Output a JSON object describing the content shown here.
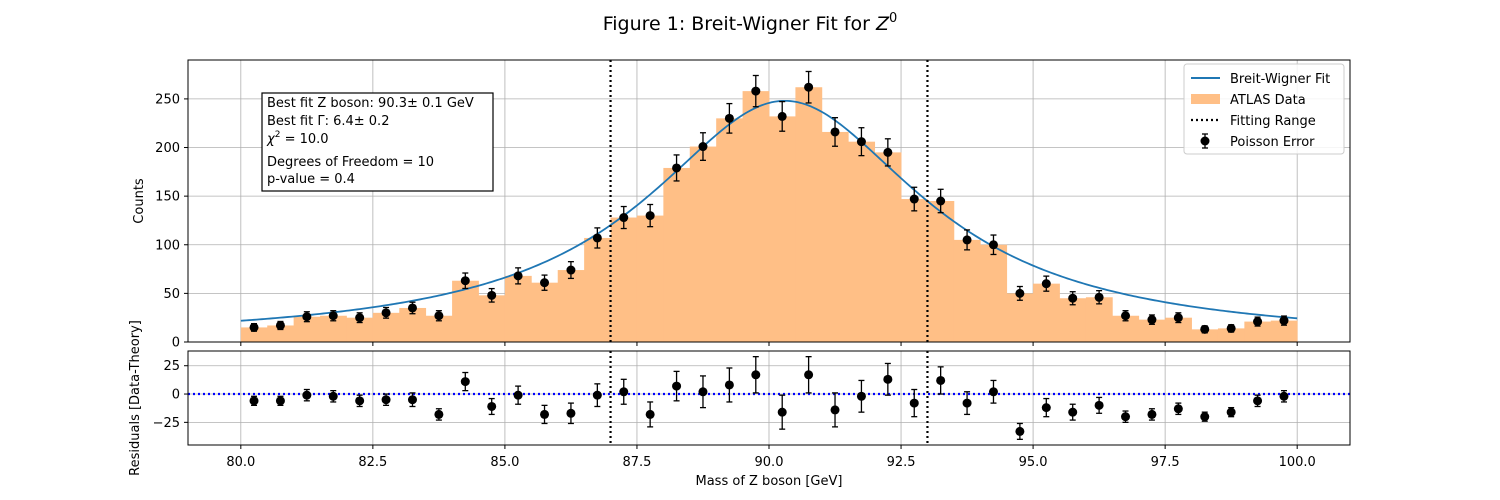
{
  "figure": {
    "title_prefix": "Figure 1: Breit-Wigner Fit for ",
    "title_math_base": "Z",
    "title_math_sup": "0"
  },
  "chart_data": [
    {
      "type": "bar",
      "panel": "main",
      "ylabel": "Counts",
      "xlim": [
        79.0,
        101.0
      ],
      "ylim": [
        0,
        290
      ],
      "yticks": [
        0,
        50,
        100,
        150,
        200,
        250
      ],
      "xticks": [
        80.0,
        82.5,
        85.0,
        87.5,
        90.0,
        92.5,
        95.0,
        97.5,
        100.0
      ],
      "xtick_labels": [
        "80.0",
        "82.5",
        "85.0",
        "87.5",
        "90.0",
        "92.5",
        "95.0",
        "97.5",
        "100.0"
      ],
      "grid": true,
      "legend_position": "top-right",
      "bin_edges_start": 80.0,
      "bin_width": 0.5,
      "x": [
        80.25,
        80.75,
        81.25,
        81.75,
        82.25,
        82.75,
        83.25,
        83.75,
        84.25,
        84.75,
        85.25,
        85.75,
        86.25,
        86.75,
        87.25,
        87.75,
        88.25,
        88.75,
        89.25,
        89.75,
        90.25,
        90.75,
        91.25,
        91.75,
        92.25,
        92.75,
        93.25,
        93.75,
        94.25,
        94.75,
        95.25,
        95.75,
        96.25,
        96.75,
        97.25,
        97.75,
        98.25,
        98.75,
        99.25,
        99.75
      ],
      "series": [
        {
          "name": "ATLAS Data",
          "kind": "histogram",
          "color": "#ffbf86",
          "values": [
            15,
            17,
            26,
            27,
            25,
            30,
            35,
            27,
            63,
            48,
            68,
            61,
            74,
            107,
            128,
            130,
            179,
            201,
            230,
            258,
            232,
            262,
            216,
            206,
            195,
            147,
            145,
            105,
            100,
            50,
            60,
            45,
            46,
            27,
            23,
            25,
            13,
            14,
            21,
            22
          ]
        },
        {
          "name": "Poisson Error",
          "kind": "errorbar",
          "color": "#000000",
          "values": [
            15,
            17,
            26,
            27,
            25,
            30,
            35,
            27,
            63,
            48,
            68,
            61,
            74,
            107,
            128,
            130,
            179,
            201,
            230,
            258,
            232,
            262,
            216,
            206,
            195,
            147,
            145,
            105,
            100,
            50,
            60,
            45,
            46,
            27,
            23,
            25,
            13,
            14,
            21,
            22
          ]
        },
        {
          "name": "Breit-Wigner Fit",
          "kind": "line",
          "color": "#1f77b4",
          "mass": 90.3,
          "width": 6.4,
          "peak": 248,
          "x_range": [
            80.0,
            100.0
          ]
        },
        {
          "name": "Fitting Range",
          "kind": "vlines",
          "color": "#000000",
          "style": "dotted",
          "x": [
            87.0,
            93.0
          ]
        }
      ],
      "annotation": [
        "Best fit Z boson: 90.3± 0.1 GeV",
        "Best fit Γ: 6.4± 0.2",
        " = 10.0",
        "Degrees of Freedom = 10",
        "p-value = 0.4"
      ],
      "annotation_chi_symbol": "χ",
      "annotation_chi_sup": "2"
    },
    {
      "type": "scatter",
      "panel": "residuals",
      "xlabel": "Mass of Z boson [GeV]",
      "ylabel": "Residuals [Data-Theory]",
      "xlim": [
        79.0,
        101.0
      ],
      "ylim": [
        -45,
        38
      ],
      "yticks": [
        -25,
        0,
        25
      ],
      "xticks": [
        80.0,
        82.5,
        85.0,
        87.5,
        90.0,
        92.5,
        95.0,
        97.5,
        100.0
      ],
      "xtick_labels": [
        "80.0",
        "82.5",
        "85.0",
        "87.5",
        "90.0",
        "92.5",
        "95.0",
        "97.5",
        "100.0"
      ],
      "grid": true,
      "zero_line": {
        "y": 0,
        "color": "#0000ff",
        "style": "dotted"
      },
      "vlines": [
        87.0,
        93.0
      ],
      "x": [
        80.25,
        80.75,
        81.25,
        81.75,
        82.25,
        82.75,
        83.25,
        83.75,
        84.25,
        84.75,
        85.25,
        85.75,
        86.25,
        86.75,
        87.25,
        87.75,
        88.25,
        88.75,
        89.25,
        89.75,
        90.25,
        90.75,
        91.25,
        91.75,
        92.25,
        92.75,
        93.25,
        93.75,
        94.25,
        94.75,
        95.25,
        95.75,
        96.25,
        96.75,
        97.25,
        97.75,
        98.25,
        98.75,
        99.25,
        99.75
      ],
      "values": [
        -6,
        -6,
        -1,
        -2,
        -6,
        -5,
        -5,
        -18,
        11,
        -11,
        -1,
        -18,
        -17,
        -1,
        2,
        -18,
        7,
        2,
        8,
        17,
        -16,
        17,
        -14,
        -2,
        13,
        -8,
        12,
        -8,
        2,
        -33,
        -12,
        -16,
        -10,
        -20,
        -18,
        -13,
        -20,
        -16,
        -6,
        -2
      ],
      "errors": [
        4,
        4,
        5,
        5,
        5,
        5,
        6,
        5,
        8,
        7,
        8,
        8,
        9,
        10,
        11,
        11,
        13,
        14,
        15,
        16,
        15,
        16,
        15,
        14,
        14,
        12,
        12,
        10,
        10,
        7,
        8,
        7,
        7,
        5,
        5,
        5,
        4,
        4,
        5,
        5
      ]
    }
  ]
}
